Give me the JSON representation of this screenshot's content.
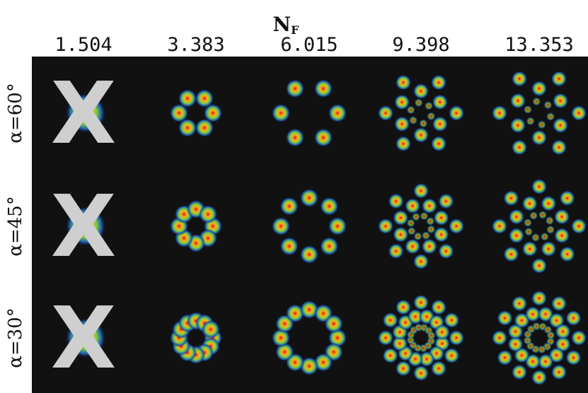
{
  "header": {
    "title": "N",
    "subscript": "F"
  },
  "columns": [
    "1.504",
    "3.383",
    "6.015",
    "9.398",
    "13.353"
  ],
  "rows": [
    "α=60°",
    "α=45°",
    "α=30°"
  ],
  "marks": [
    "X",
    "X",
    "X"
  ]
}
